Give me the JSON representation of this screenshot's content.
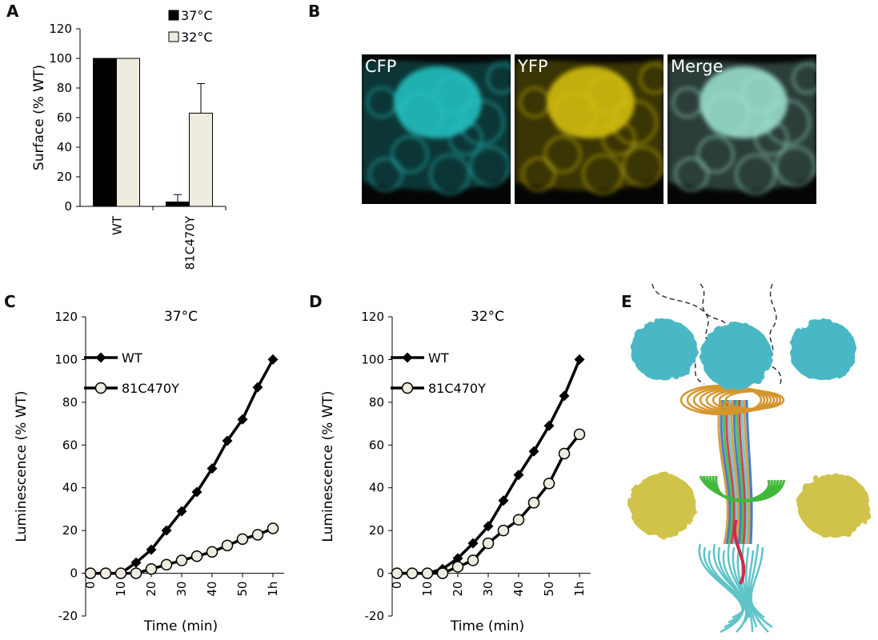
{
  "panels": {
    "A": {
      "letter": "A"
    },
    "B": {
      "letter": "B"
    },
    "C": {
      "letter": "C"
    },
    "D": {
      "letter": "D"
    },
    "E": {
      "letter": "E"
    }
  },
  "micrographs": [
    {
      "label": "CFP",
      "color": "#27c6c6"
    },
    {
      "label": "YFP",
      "color": "#d9c40e"
    },
    {
      "label": "Merge",
      "color": "#9fe6d2"
    }
  ],
  "structure": {
    "cap_color": "#4ab8c4",
    "side_color": "#cfc34a",
    "helix_colors": [
      "#d4962d",
      "#2f6fcf",
      "#42b83a",
      "#d02a4a",
      "#5fc4c8"
    ]
  },
  "chart_data": [
    {
      "id": "A",
      "type": "bar",
      "title": "",
      "xlabel": "",
      "ylabel": "Surface (% WT)",
      "ylim": [
        0,
        120
      ],
      "yticks": [
        0,
        20,
        40,
        60,
        80,
        100,
        120
      ],
      "categories": [
        "WT",
        "81C470Y"
      ],
      "series": [
        {
          "name": "37°C",
          "color": "#000000",
          "values": [
            100,
            3
          ],
          "errors": [
            0,
            5
          ]
        },
        {
          "name": "32°C",
          "color": "#eeebdf",
          "values": [
            100,
            63
          ],
          "errors": [
            0,
            20
          ]
        }
      ],
      "legend": "top-right"
    },
    {
      "id": "C",
      "type": "line",
      "title": "37°C",
      "xlabel": "Time (min)",
      "ylabel": "Luminescence (% WT)",
      "ylim": [
        -20,
        120
      ],
      "yticks": [
        -20,
        0,
        20,
        40,
        60,
        80,
        100,
        120
      ],
      "xlim": [
        0,
        60
      ],
      "xticks": [
        0,
        10,
        20,
        30,
        40,
        50,
        60
      ],
      "xticklabels": [
        "0",
        "10",
        "20",
        "30",
        "40",
        "50",
        "1h"
      ],
      "series": [
        {
          "name": "WT",
          "marker": "diamond",
          "x": [
            0,
            5,
            10,
            15,
            20,
            25,
            30,
            35,
            40,
            45,
            50,
            55,
            60
          ],
          "y": [
            0,
            0,
            0,
            5,
            11,
            20,
            29,
            38,
            49,
            62,
            72,
            87,
            100
          ]
        },
        {
          "name": "81C470Y",
          "marker": "circle",
          "x": [
            0,
            5,
            10,
            15,
            20,
            25,
            30,
            35,
            40,
            45,
            50,
            55,
            60
          ],
          "y": [
            0,
            0,
            0,
            0,
            2,
            4,
            6,
            8,
            10,
            13,
            16,
            18,
            21
          ]
        }
      ],
      "legend": "top-left"
    },
    {
      "id": "D",
      "type": "line",
      "title": "32°C",
      "xlabel": "Time (min)",
      "ylabel": "Luminescence (% WT)",
      "ylim": [
        -20,
        120
      ],
      "yticks": [
        -20,
        0,
        20,
        40,
        60,
        80,
        100,
        120
      ],
      "xlim": [
        0,
        60
      ],
      "xticks": [
        0,
        10,
        20,
        30,
        40,
        50,
        60
      ],
      "xticklabels": [
        "0",
        "10",
        "20",
        "30",
        "40",
        "50",
        "1h"
      ],
      "series": [
        {
          "name": "WT",
          "marker": "diamond",
          "x": [
            0,
            5,
            10,
            15,
            20,
            25,
            30,
            35,
            40,
            45,
            50,
            55,
            60
          ],
          "y": [
            0,
            0,
            0,
            2,
            7,
            14,
            22,
            34,
            46,
            57,
            69,
            83,
            100
          ]
        },
        {
          "name": "81C470Y",
          "marker": "circle",
          "x": [
            0,
            5,
            10,
            15,
            20,
            25,
            30,
            35,
            40,
            45,
            50,
            55,
            60
          ],
          "y": [
            0,
            0,
            0,
            0,
            3,
            6,
            14,
            20,
            25,
            33,
            42,
            56,
            65
          ]
        }
      ],
      "legend": "top-left"
    }
  ]
}
